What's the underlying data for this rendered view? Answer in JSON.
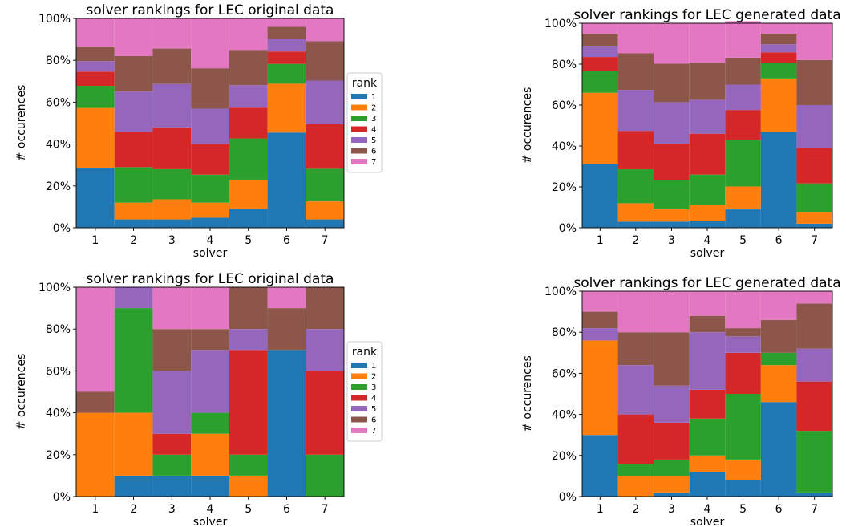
{
  "chart_data": [
    {
      "type": "bar",
      "stacked": true,
      "title": "solver rankings for LEC original data",
      "xlabel": "solver",
      "ylabel": "# occurences",
      "categories": [
        "1",
        "2",
        "3",
        "4",
        "5",
        "6",
        "7"
      ],
      "ylim": [
        0,
        100
      ],
      "yticks": [
        "0%",
        "20%",
        "40%",
        "60%",
        "80%",
        "100%"
      ],
      "legend": {
        "title": "rank",
        "placement": "right",
        "entries": [
          "1",
          "2",
          "3",
          "4",
          "5",
          "6",
          "7"
        ]
      },
      "series": [
        {
          "name": "1",
          "values": [
            28.6,
            4,
            4,
            4.8,
            9,
            45.5,
            4
          ]
        },
        {
          "name": "2",
          "values": [
            28.6,
            8,
            9.6,
            7.2,
            14,
            23.3,
            8.6
          ]
        },
        {
          "name": "3",
          "values": [
            10.6,
            17,
            14.4,
            13.4,
            19.7,
            9.5,
            15.6
          ]
        },
        {
          "name": "4",
          "values": [
            6.8,
            16.8,
            20,
            14.6,
            14.7,
            5.9,
            21.3
          ]
        },
        {
          "name": "5",
          "values": [
            5,
            19.3,
            20.7,
            16.9,
            10.7,
            5.9,
            20.8
          ]
        },
        {
          "name": "6",
          "values": [
            7,
            16.9,
            16.9,
            19.3,
            16.9,
            5.9,
            18.8
          ]
        },
        {
          "name": "7",
          "values": [
            13.4,
            18,
            14.4,
            23.8,
            15,
            4,
            10.9
          ]
        }
      ]
    },
    {
      "type": "bar",
      "stacked": true,
      "title": "solver rankings for LEC generated data",
      "xlabel": "solver",
      "ylabel": "# occurences",
      "categories": [
        "1",
        "2",
        "3",
        "4",
        "5",
        "6",
        "7"
      ],
      "ylim": [
        0,
        100
      ],
      "yticks": [
        "0%",
        "20%",
        "40%",
        "60%",
        "80%",
        "100%"
      ],
      "series": [
        {
          "name": "1",
          "values": [
            31,
            3,
            3,
            3.5,
            9,
            47,
            2
          ]
        },
        {
          "name": "2",
          "values": [
            35,
            9,
            6,
            7.5,
            11.2,
            26,
            5.8
          ]
        },
        {
          "name": "3",
          "values": [
            10.5,
            16.6,
            14.3,
            15,
            22.8,
            7.4,
            13.9
          ]
        },
        {
          "name": "4",
          "values": [
            7,
            18.8,
            17.8,
            20,
            14.6,
            5.4,
            17.5
          ]
        },
        {
          "name": "5",
          "values": [
            5.5,
            20,
            20.3,
            16.6,
            12.4,
            3.9,
            20.8
          ]
        },
        {
          "name": "6",
          "values": [
            5.8,
            17.9,
            18.9,
            18.1,
            13.2,
            5.2,
            22
          ]
        },
        {
          "name": "7",
          "values": [
            5.2,
            14.7,
            19.7,
            19.3,
            17.8,
            5.1,
            18
          ]
        }
      ]
    },
    {
      "type": "bar",
      "stacked": true,
      "title": "solver rankings for LEC original data",
      "xlabel": "solver",
      "ylabel": "# occurences",
      "categories": [
        "1",
        "2",
        "3",
        "4",
        "5",
        "6",
        "7"
      ],
      "ylim": [
        0,
        100
      ],
      "yticks": [
        "0%",
        "20%",
        "40%",
        "60%",
        "80%",
        "100%"
      ],
      "legend": {
        "title": "rank",
        "placement": "right",
        "entries": [
          "1",
          "2",
          "3",
          "4",
          "5",
          "6",
          "7"
        ]
      },
      "series": [
        {
          "name": "1",
          "values": [
            0,
            10,
            10,
            10,
            0,
            70,
            0
          ]
        },
        {
          "name": "2",
          "values": [
            40,
            30,
            0,
            20,
            10,
            0,
            0
          ]
        },
        {
          "name": "3",
          "values": [
            0,
            50,
            10,
            10,
            10,
            0,
            20
          ]
        },
        {
          "name": "4",
          "values": [
            0,
            0,
            10,
            0,
            50,
            0,
            40
          ]
        },
        {
          "name": "5",
          "values": [
            0,
            10,
            30,
            30,
            10,
            0,
            20
          ]
        },
        {
          "name": "6",
          "values": [
            10,
            0,
            20,
            10,
            20,
            20,
            20
          ]
        },
        {
          "name": "7",
          "values": [
            50,
            0,
            20,
            20,
            0,
            10,
            0
          ]
        }
      ]
    },
    {
      "type": "bar",
      "stacked": true,
      "title": "solver rankings for LEC generated data",
      "xlabel": "solver",
      "ylabel": "# occurences",
      "categories": [
        "1",
        "2",
        "3",
        "4",
        "5",
        "6",
        "7"
      ],
      "ylim": [
        0,
        100
      ],
      "yticks": [
        "0%",
        "20%",
        "40%",
        "60%",
        "80%",
        "100%"
      ],
      "series": [
        {
          "name": "1",
          "values": [
            30,
            0,
            2,
            12,
            8,
            46,
            2
          ]
        },
        {
          "name": "2",
          "values": [
            46,
            10,
            8,
            8,
            10,
            18,
            0
          ]
        },
        {
          "name": "3",
          "values": [
            0,
            6,
            8,
            18,
            32,
            6,
            30
          ]
        },
        {
          "name": "4",
          "values": [
            0,
            24,
            18,
            14,
            20,
            0,
            24
          ]
        },
        {
          "name": "5",
          "values": [
            6,
            24,
            18,
            28,
            8,
            0,
            16
          ]
        },
        {
          "name": "6",
          "values": [
            8,
            16,
            26,
            8,
            4,
            16,
            22
          ]
        },
        {
          "name": "7",
          "values": [
            10,
            20,
            20,
            12,
            18,
            14,
            6
          ]
        }
      ]
    }
  ],
  "colors": [
    "#1f77b4",
    "#ff7f0e",
    "#2ca02c",
    "#d62728",
    "#9467bd",
    "#8c564b",
    "#e377c2"
  ]
}
